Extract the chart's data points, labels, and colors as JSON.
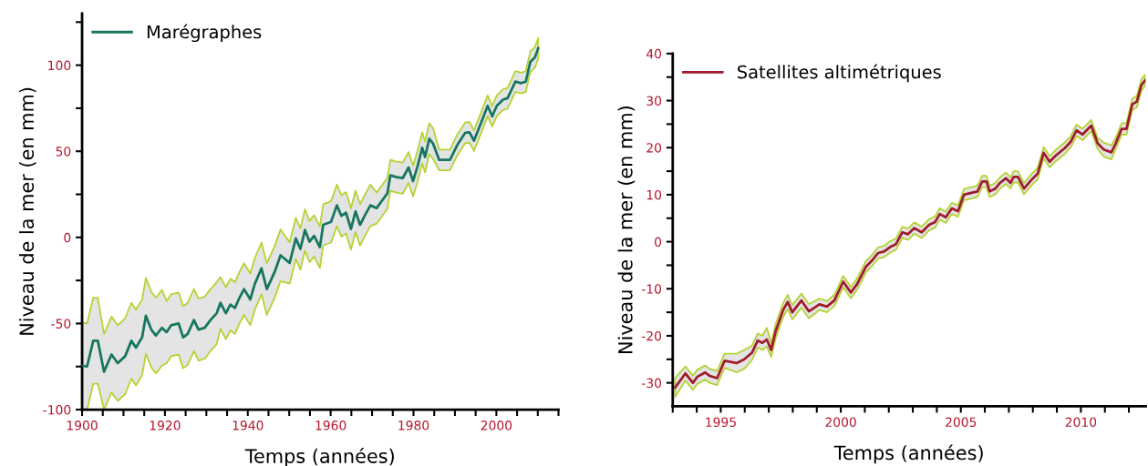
{
  "chart_data": [
    {
      "type": "line",
      "xlabel": "Temps (années)",
      "ylabel": "Niveau de la mer (en mm)",
      "xlim": [
        1900,
        2015
      ],
      "ylim": [
        -100,
        130
      ],
      "xticks": [
        {
          "value": 1900,
          "label": "1900"
        },
        {
          "value": 1905,
          "label": null
        },
        {
          "value": 1910,
          "label": null
        },
        {
          "value": 1915,
          "label": null
        },
        {
          "value": 1920,
          "label": "1920"
        },
        {
          "value": 1925,
          "label": null
        },
        {
          "value": 1930,
          "label": null
        },
        {
          "value": 1935,
          "label": null
        },
        {
          "value": 1940,
          "label": "1940"
        },
        {
          "value": 1945,
          "label": null
        },
        {
          "value": 1950,
          "label": null
        },
        {
          "value": 1955,
          "label": null
        },
        {
          "value": 1960,
          "label": "1960"
        },
        {
          "value": 1965,
          "label": null
        },
        {
          "value": 1970,
          "label": null
        },
        {
          "value": 1975,
          "label": null
        },
        {
          "value": 1980,
          "label": "1980"
        },
        {
          "value": 1985,
          "label": null
        },
        {
          "value": 1990,
          "label": null
        },
        {
          "value": 1995,
          "label": null
        },
        {
          "value": 2000,
          "label": "2000"
        },
        {
          "value": 2005,
          "label": null
        },
        {
          "value": 2010,
          "label": null
        },
        {
          "value": 2015,
          "label": null
        }
      ],
      "yticks": [
        -100,
        {
          "value": -75,
          "label": null
        },
        -50,
        {
          "value": -25,
          "label": null
        },
        0,
        {
          "value": 25,
          "label": null
        },
        50,
        {
          "value": 75,
          "label": null
        },
        100,
        {
          "value": 125,
          "label": null
        }
      ],
      "grid": false,
      "legend": "top left",
      "marker": "none",
      "line_style": "solid",
      "series": [
        {
          "name": "Marégraphes",
          "color": "#17765f",
          "x": [
            1900.1,
            1901.2,
            1902.7,
            1903.8,
            1905.3,
            1907.1,
            1908.6,
            1910.4,
            1911.9,
            1913,
            1914.5,
            1915.4,
            1916.7,
            1917.8,
            1919.3,
            1920.4,
            1921.5,
            1923.3,
            1924.4,
            1925.5,
            1927,
            1928.1,
            1929.6,
            1931,
            1932.5,
            1933.4,
            1934.7,
            1935.8,
            1936.9,
            1938,
            1939.1,
            1940.6,
            1941.7,
            1943.3,
            1944.6,
            1946.5,
            1947.9,
            1950.1,
            1951.6,
            1952.7,
            1953.8,
            1954.9,
            1956,
            1957.4,
            1958.2,
            1960.1,
            1961.5,
            1962.6,
            1963.7,
            1964.9,
            1966,
            1967.1,
            1968.2,
            1969.6,
            1971.1,
            1972.6,
            1973.7,
            1974.4,
            1975.9,
            1977.4,
            1978.8,
            1979.9,
            1981,
            1982.1,
            1982.8,
            1983.8,
            1984.7,
            1986.2,
            1988.8,
            1990.6,
            1992.5,
            1993.5,
            1994.6,
            1996.5,
            1997.9,
            1999,
            2000.1,
            2001.6,
            2002.7,
            2004.6,
            2006,
            2007.1,
            2008.2,
            2009.3,
            2010.1
          ],
          "values": [
            -74.5,
            -75,
            -60,
            -60,
            -78,
            -68,
            -73,
            -69,
            -60,
            -64,
            -58,
            -45.5,
            -53.5,
            -57,
            -52.5,
            -55,
            -51,
            -50,
            -58,
            -56,
            -48,
            -53.5,
            -52.5,
            -48,
            -44,
            -38,
            -44,
            -39,
            -41,
            -35,
            -30,
            -36,
            -27,
            -18,
            -30,
            -20,
            -10.4,
            -14.8,
            -0.6,
            -6.7,
            4.3,
            -2.5,
            0.9,
            -5.7,
            7.3,
            9,
            18.6,
            12.5,
            14.3,
            4.9,
            15.1,
            7.3,
            12.5,
            18.6,
            17,
            22,
            25.6,
            36,
            35,
            34.4,
            40.6,
            32.7,
            41.5,
            52,
            46.7,
            57.3,
            54.6,
            45,
            45,
            53.8,
            60.8,
            61,
            56.2,
            67.7,
            76.4,
            70.3,
            76.4,
            80,
            80.8,
            90.5,
            89.6,
            90.5,
            101.9,
            104.5,
            109.8
          ],
          "lower": [
            -99.5,
            -100,
            -85,
            -85,
            -100,
            -90,
            -95,
            -91,
            -82,
            -86,
            -80,
            -67.5,
            -75.5,
            -79,
            -74.5,
            -73,
            -69,
            -68,
            -76,
            -74,
            -66,
            -71.5,
            -70.5,
            -66,
            -62,
            -53,
            -59,
            -54,
            -56,
            -50,
            -45,
            -51,
            -42,
            -33,
            -45,
            -35,
            -25.4,
            -26.8,
            -12.6,
            -18.7,
            -7.7,
            -14.5,
            -11.1,
            -17.7,
            -4.7,
            -3,
            6.6,
            0.5,
            2.3,
            -7.1,
            3.1,
            -4.7,
            0.5,
            6.6,
            8,
            13,
            16.6,
            27,
            26,
            25.4,
            31.6,
            23.7,
            32.5,
            43,
            37.7,
            48.3,
            45.6,
            39,
            39,
            47.8,
            54.8,
            55,
            50.2,
            61.7,
            70.4,
            64.3,
            70.4,
            74,
            74.8,
            84.5,
            83.6,
            84.5,
            95.9,
            98.5,
            103.8
          ],
          "upper": [
            -49.5,
            -50,
            -35,
            -35,
            -56,
            -46,
            -51,
            -47,
            -38,
            -42,
            -36,
            -23.5,
            -31.5,
            -35,
            -30.5,
            -37,
            -33,
            -32,
            -40,
            -38,
            -30,
            -35.5,
            -34.5,
            -30,
            -26,
            -23,
            -29,
            -24,
            -26,
            -20,
            -15,
            -21,
            -12,
            -3,
            -15,
            -5,
            4.6,
            -2.8,
            11.4,
            5.3,
            16.3,
            9.5,
            12.9,
            6.3,
            19.3,
            21,
            30.6,
            24.5,
            26.3,
            16.9,
            27.1,
            19.3,
            24.5,
            30.6,
            26,
            31,
            34.6,
            45,
            44,
            43.4,
            49.6,
            41.7,
            50.5,
            61,
            55.7,
            66.3,
            63.6,
            51,
            51,
            59.8,
            66.8,
            67,
            62.2,
            73.7,
            82.4,
            76.3,
            82.4,
            86,
            86.8,
            96.5,
            95.6,
            96.5,
            107.9,
            110.5,
            115.8
          ]
        }
      ]
    },
    {
      "type": "line",
      "xlabel": "Temps (années)",
      "ylabel": "Niveau de la mer (en mm)",
      "xlim": [
        1993,
        2012.7
      ],
      "ylim": [
        -35,
        40
      ],
      "xticks": [
        {
          "value": 1993,
          "label": null
        },
        {
          "value": 1994,
          "label": null
        },
        1995,
        {
          "value": 1996,
          "label": null
        },
        {
          "value": 1997,
          "label": null
        },
        {
          "value": 1998,
          "label": null
        },
        {
          "value": 1999,
          "label": null
        },
        2000,
        {
          "value": 2001,
          "label": null
        },
        {
          "value": 2002,
          "label": null
        },
        {
          "value": 2003,
          "label": null
        },
        {
          "value": 2004,
          "label": null
        },
        2005,
        {
          "value": 2006,
          "label": null
        },
        {
          "value": 2007,
          "label": null
        },
        {
          "value": 2008,
          "label": null
        },
        {
          "value": 2009,
          "label": null
        },
        2010,
        {
          "value": 2011,
          "label": null
        },
        {
          "value": 2012,
          "label": null
        }
      ],
      "yticks": [
        -30,
        {
          "value": -25,
          "label": null
        },
        -20,
        {
          "value": -15,
          "label": null
        },
        -10,
        {
          "value": -5,
          "label": null
        },
        0,
        {
          "value": 5,
          "label": null
        },
        10,
        {
          "value": 15,
          "label": null
        },
        20,
        {
          "value": 25,
          "label": null
        },
        30,
        {
          "value": 35,
          "label": null
        },
        40
      ],
      "grid": false,
      "legend": "top left",
      "marker": "none",
      "line_style": "solid",
      "series": [
        {
          "name": "Satellites altimétriques",
          "color": "#a01c2c",
          "x": [
            1993.1,
            1993.53,
            1993.84,
            1994.03,
            1994.35,
            1994.53,
            1994.85,
            1995.16,
            1995.66,
            1995.98,
            1996.3,
            1996.54,
            1996.73,
            1996.92,
            1997.1,
            1997.29,
            1997.6,
            1997.79,
            1997.98,
            1998.36,
            1998.67,
            1999.11,
            1999.42,
            1999.73,
            2000.1,
            2000.42,
            2000.68,
            2001.05,
            2001.3,
            2001.55,
            2001.8,
            2002.06,
            2002.3,
            2002.56,
            2002.8,
            2003.06,
            2003.37,
            2003.68,
            2003.93,
            2004.12,
            2004.37,
            2004.63,
            2004.88,
            2005.13,
            2005.44,
            2005.69,
            2005.89,
            2006.07,
            2006.2,
            2006.44,
            2006.63,
            2006.88,
            2007.07,
            2007.2,
            2007.38,
            2007.63,
            2007.95,
            2008.2,
            2008.45,
            2008.7,
            2008.95,
            2009.33,
            2009.57,
            2009.82,
            2010.07,
            2010.43,
            2010.7,
            2010.95,
            2011.27,
            2011.45,
            2011.7,
            2011.9,
            2012.14,
            2012.33,
            2012.52,
            2012.67
          ],
          "values": [
            -31,
            -28,
            -30,
            -28.7,
            -27.8,
            -28.5,
            -29,
            -25.3,
            -25.8,
            -25,
            -23.6,
            -21,
            -21.5,
            -20.8,
            -23,
            -19,
            -14.5,
            -12.8,
            -15,
            -12.5,
            -14.8,
            -13.3,
            -13.8,
            -12.5,
            -8.5,
            -10.8,
            -9,
            -5.3,
            -4,
            -2.4,
            -2.1,
            -1.1,
            -0.5,
            2,
            1.6,
            2.9,
            2,
            3.6,
            4.2,
            5.9,
            5.2,
            7.1,
            6.5,
            10,
            10.4,
            10.7,
            12.8,
            12.8,
            10.7,
            11.3,
            12.5,
            13.5,
            12.5,
            13.8,
            13.8,
            11.3,
            13.2,
            14.5,
            18.9,
            17,
            18.3,
            19.9,
            21.2,
            23.7,
            22.8,
            24.7,
            20.9,
            19.6,
            19,
            20.9,
            24,
            24,
            29.2,
            29.8,
            33.3,
            34.3
          ],
          "lower": [
            -33,
            -29.5,
            -31.5,
            -30.2,
            -29.3,
            -30,
            -30.5,
            -26.8,
            -27.8,
            -27,
            -25.1,
            -22.5,
            -23,
            -22.3,
            -24.5,
            -20.5,
            -16,
            -14.3,
            -16.5,
            -14,
            -16.3,
            -14.5,
            -15,
            -13.7,
            -9.7,
            -12,
            -10.2,
            -6.5,
            -5.2,
            -3.6,
            -3.3,
            -2.3,
            -1.7,
            0.8,
            0.4,
            1.7,
            0.8,
            2.4,
            3,
            4.7,
            4,
            5.9,
            5.3,
            8.8,
            9.2,
            9.5,
            11.6,
            11.6,
            9.5,
            10.1,
            11.3,
            12.3,
            11.3,
            12.6,
            12.6,
            10.1,
            12,
            13.3,
            17.7,
            15.8,
            17.1,
            18.7,
            20,
            22.5,
            21.6,
            23.5,
            19.7,
            18.1,
            17.5,
            19.7,
            22.8,
            22.8,
            28,
            28.6,
            32.1,
            33.1
          ],
          "upper": [
            -29,
            -26.5,
            -28.5,
            -27.2,
            -26.3,
            -27,
            -27.5,
            -23.8,
            -23.8,
            -23,
            -22.1,
            -19.5,
            -20,
            -18.3,
            -21.5,
            -17.5,
            -13,
            -11.3,
            -13.5,
            -11,
            -13.3,
            -12.1,
            -12.6,
            -11.3,
            -7.3,
            -9.6,
            -7.8,
            -4.1,
            -2.8,
            -1.2,
            -0.9,
            0.1,
            0.7,
            3.2,
            2.8,
            4.1,
            3.2,
            4.8,
            5.4,
            7.1,
            6.4,
            8.3,
            7.7,
            11.2,
            11.6,
            11.9,
            14,
            14,
            11.9,
            12.5,
            13.7,
            14.7,
            13.7,
            15,
            15,
            12.5,
            14.4,
            15.7,
            20.1,
            18.2,
            19.5,
            21.1,
            22.4,
            24.9,
            24,
            25.9,
            22.1,
            21.1,
            20.5,
            22.1,
            25.2,
            25.2,
            30.4,
            31,
            34.5,
            35.5
          ]
        }
      ]
    }
  ]
}
